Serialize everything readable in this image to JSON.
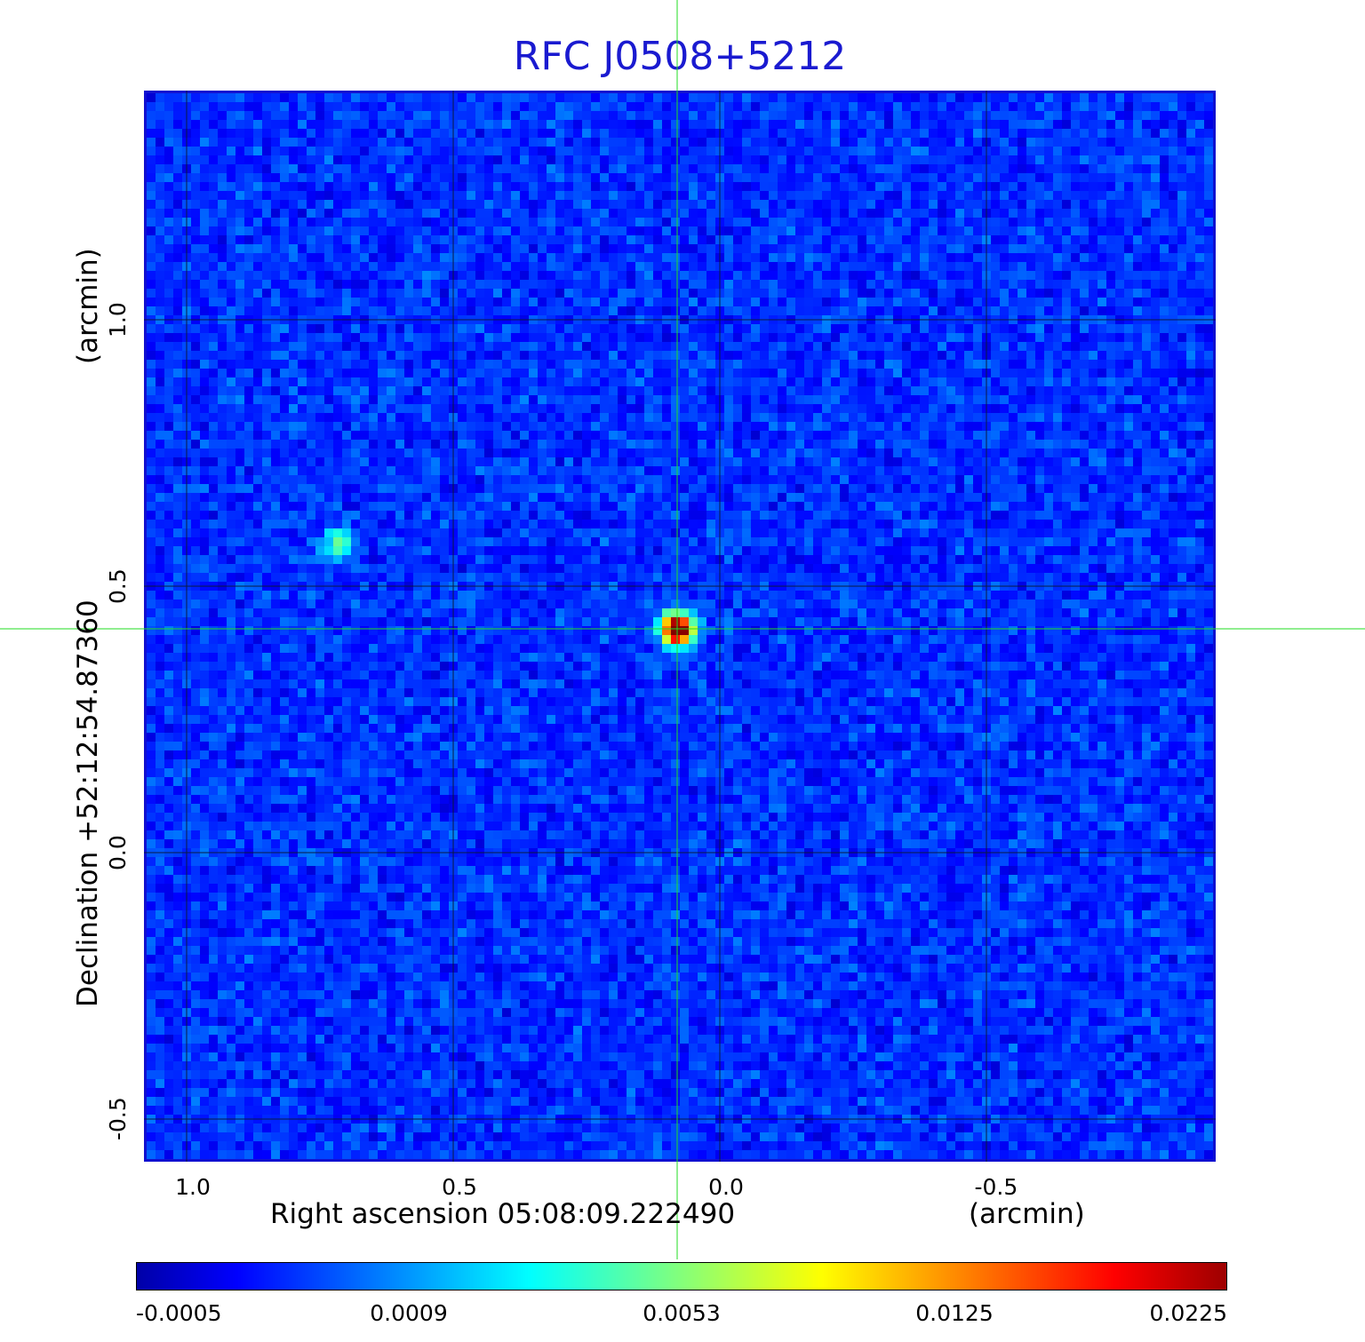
{
  "chart_data": {
    "type": "heatmap",
    "title": "RFC J0508+5212",
    "xlabel": "Right ascension  05:08:09.222490",
    "xlabel_unit": "(arcmin)",
    "ylabel": "Declination  +52:12:54.87360",
    "ylabel_unit": "(arcmin)",
    "x_range": [
      1.08,
      -0.93
    ],
    "y_range": [
      -0.58,
      1.43
    ],
    "x_ticks": [
      {
        "value": 1.0,
        "label": "1.0"
      },
      {
        "value": 0.5,
        "label": "0.5"
      },
      {
        "value": 0.0,
        "label": "0.0"
      },
      {
        "value": -0.5,
        "label": "-0.5"
      }
    ],
    "y_ticks": [
      {
        "value": -0.5,
        "label": "-0.5"
      },
      {
        "value": 0.0,
        "label": "0.0"
      },
      {
        "value": 0.5,
        "label": "0.5"
      },
      {
        "value": 1.0,
        "label": "1.0"
      }
    ],
    "grid": true,
    "crosshair": {
      "x": 0.08,
      "y": 0.42,
      "color": "#22dd22"
    },
    "sources": [
      {
        "x": 0.08,
        "y": 0.42,
        "peak": 0.0225
      },
      {
        "x": 0.72,
        "y": 0.58,
        "peak": 0.0065
      }
    ],
    "colorbar": {
      "colormap": "jet",
      "tick_labels": [
        "-0.0005",
        "0.0009",
        "0.0053",
        "0.0125",
        "0.0225"
      ],
      "min": -0.0005,
      "max": 0.0225
    },
    "frame_color": "#1010d0",
    "title_color": "#1a1ad0"
  }
}
